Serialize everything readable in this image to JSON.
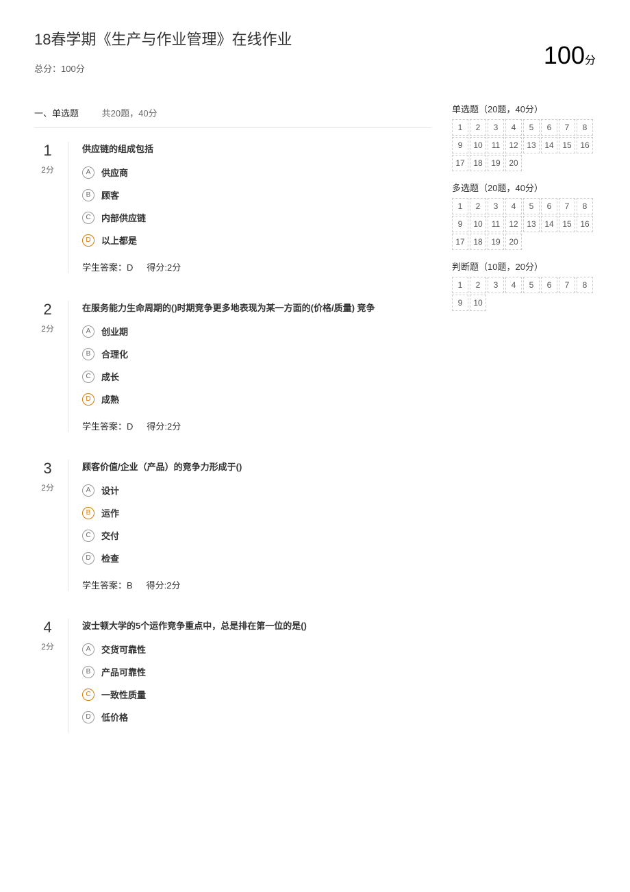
{
  "header": {
    "title": "18春学期《生产与作业管理》在线作业",
    "total_label": "总分：100分",
    "score_value": "100",
    "score_unit": "分"
  },
  "section": {
    "label": "一、单选题",
    "meta": "共20题，40分"
  },
  "questions": [
    {
      "num": "1",
      "points": "2分",
      "stem": "供应链的组成包括",
      "options": [
        {
          "letter": "A",
          "text": "供应商",
          "correct": false
        },
        {
          "letter": "B",
          "text": "顾客",
          "correct": false
        },
        {
          "letter": "C",
          "text": "内部供应链",
          "correct": false
        },
        {
          "letter": "D",
          "text": "以上都是",
          "correct": true
        }
      ],
      "student_answer_label": "学生答案：D",
      "score_label": "得分:2分"
    },
    {
      "num": "2",
      "points": "2分",
      "stem": "在服务能力生命周期的()时期竞争更多地表现为某一方面的(价格/质量) 竞争",
      "options": [
        {
          "letter": "A",
          "text": "创业期",
          "correct": false
        },
        {
          "letter": "B",
          "text": "合理化",
          "correct": false
        },
        {
          "letter": "C",
          "text": "成长",
          "correct": false
        },
        {
          "letter": "D",
          "text": "成熟",
          "correct": true
        }
      ],
      "student_answer_label": "学生答案：D",
      "score_label": "得分:2分"
    },
    {
      "num": "3",
      "points": "2分",
      "stem": "顾客价值/企业（产品）的竞争力形成于()",
      "options": [
        {
          "letter": "A",
          "text": "设计",
          "correct": false
        },
        {
          "letter": "B",
          "text": "运作",
          "correct": true
        },
        {
          "letter": "C",
          "text": "交付",
          "correct": false
        },
        {
          "letter": "D",
          "text": "检查",
          "correct": false
        }
      ],
      "student_answer_label": "学生答案：B",
      "score_label": "得分:2分"
    },
    {
      "num": "4",
      "points": "2分",
      "stem": "波士顿大学的5个运作竞争重点中，总是排在第一位的是()",
      "options": [
        {
          "letter": "A",
          "text": "交货可靠性",
          "correct": false
        },
        {
          "letter": "B",
          "text": "产品可靠性",
          "correct": false
        },
        {
          "letter": "C",
          "text": "一致性质量",
          "correct": true
        },
        {
          "letter": "D",
          "text": "低价格",
          "correct": false
        }
      ],
      "student_answer_label": "",
      "score_label": ""
    }
  ],
  "sidebar": [
    {
      "title": "单选题（20题，40分）",
      "count": 20
    },
    {
      "title": "多选题（20题，40分）",
      "count": 20
    },
    {
      "title": "判断题（10题，20分）",
      "count": 10
    }
  ],
  "colors": {
    "text": "#333333",
    "muted": "#666666",
    "border": "#e5e5e5",
    "correct": "#d97a00",
    "nav_border": "#cccccc",
    "background": "#ffffff"
  }
}
